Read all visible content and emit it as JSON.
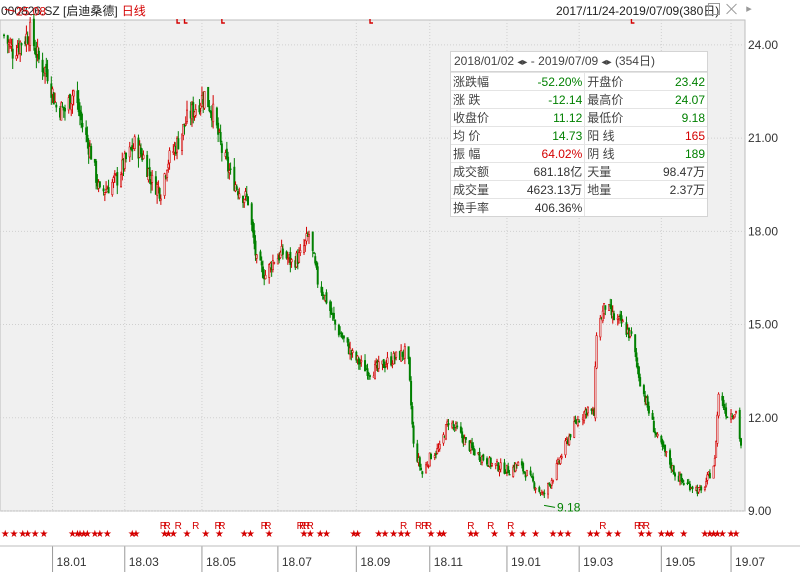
{
  "header": {
    "stock_label": "000826.SZ [启迪桑德]",
    "period": "日线",
    "date_range": "2017/11/24-2019/07/09(380日)"
  },
  "window_controls": {
    "maximize_icon": "maximize-icon",
    "close_icon": "close-icon",
    "scroll_icon": "chevron-right-icon"
  },
  "info_panel": {
    "range_start": "2018/01/02",
    "range_end": "2019/07/09",
    "range_days": "(354日)",
    "rows": [
      {
        "l1": "涨跌幅",
        "v1": "-52.20%",
        "c1": "green",
        "l2": "开盘价",
        "v2": "23.42",
        "c2": "green"
      },
      {
        "l1": "涨  跌",
        "v1": "-12.14",
        "c1": "green",
        "l2": "最高价",
        "v2": "24.07",
        "c2": "green"
      },
      {
        "l1": "收盘价",
        "v1": "11.12",
        "c1": "green",
        "l2": "最低价",
        "v2": "9.18",
        "c2": "green"
      },
      {
        "l1": "均  价",
        "v1": "14.73",
        "c1": "green",
        "l2": "阳  线",
        "v2": "165",
        "c2": "red"
      },
      {
        "l1": "振  幅",
        "v1": "64.02%",
        "c1": "red",
        "l2": "阴  线",
        "v2": "189",
        "c2": "green"
      },
      {
        "l1": "成交额",
        "v1": "681.18亿",
        "c1": "dark",
        "l2": "天量",
        "v2": "98.47万",
        "c2": "dark"
      },
      {
        "l1": "成交量",
        "v1": "4623.13万",
        "c1": "dark",
        "l2": "地量",
        "v2": "2.37万",
        "c2": "dark"
      },
      {
        "l1": "换手率",
        "v1": "406.36%",
        "c1": "dark",
        "l2": "",
        "v2": "",
        "c2": "dark"
      }
    ]
  },
  "colors": {
    "up": "#d40000",
    "down": "#008000",
    "plot_bg": "#f0f0f0",
    "grid": "#cfcfcf"
  },
  "chart_data": {
    "type": "candlestick",
    "y_ticks": [
      "24.00",
      "21.00",
      "18.00",
      "15.00",
      "12.00",
      "9.00"
    ],
    "ylim": [
      9,
      24.8
    ],
    "x_ticks": [
      {
        "label": "18.01",
        "date": "2018-01-02"
      },
      {
        "label": "18.03",
        "date": "2018-03-01"
      },
      {
        "label": "18.05",
        "date": "2018-05-02"
      },
      {
        "label": "18.07",
        "date": "2018-07-02"
      },
      {
        "label": "18.09",
        "date": "2018-09-03"
      },
      {
        "label": "18.11",
        "date": "2018-11-01"
      },
      {
        "label": "19.01",
        "date": "2019-01-02"
      },
      {
        "label": "19.03",
        "date": "2019-03-01"
      },
      {
        "label": "19.05",
        "date": "2019-05-06"
      },
      {
        "label": "19.07",
        "date": "2019-07-01"
      }
    ],
    "x_range": [
      "2017-11-24",
      "2019-07-09"
    ],
    "annotations": [
      {
        "text": "25.08",
        "date": "2017-11-24",
        "price": 25.08
      },
      {
        "text": "9.18",
        "date": "2019-01-31",
        "price": 9.18
      }
    ],
    "close_path": [
      [
        "2017-11-24",
        24.3
      ],
      [
        "2017-12-01",
        23.8
      ],
      [
        "2017-12-08",
        24.1
      ],
      [
        "2017-12-15",
        24.4
      ],
      [
        "2017-12-22",
        23.5
      ],
      [
        "2017-12-29",
        23.1
      ],
      [
        "2018-01-05",
        22.0
      ],
      [
        "2018-01-12",
        21.9
      ],
      [
        "2018-01-19",
        22.5
      ],
      [
        "2018-01-26",
        21.4
      ],
      [
        "2018-02-02",
        20.5
      ],
      [
        "2018-02-09",
        19.2
      ],
      [
        "2018-02-23",
        19.7
      ],
      [
        "2018-03-02",
        20.3
      ],
      [
        "2018-03-09",
        20.8
      ],
      [
        "2018-03-16",
        20.4
      ],
      [
        "2018-03-23",
        19.6
      ],
      [
        "2018-03-30",
        19.3
      ],
      [
        "2018-04-04",
        20.2
      ],
      [
        "2018-04-13",
        20.9
      ],
      [
        "2018-04-20",
        21.6
      ],
      [
        "2018-04-27",
        22.0
      ],
      [
        "2018-05-04",
        22.4
      ],
      [
        "2018-05-11",
        21.8
      ],
      [
        "2018-05-18",
        20.6
      ],
      [
        "2018-05-25",
        19.8
      ],
      [
        "2018-06-01",
        19.3
      ],
      [
        "2018-06-08",
        19.0
      ],
      [
        "2018-06-15",
        17.0
      ],
      [
        "2018-06-22",
        16.6
      ],
      [
        "2018-06-29",
        17.1
      ],
      [
        "2018-07-06",
        17.3
      ],
      [
        "2018-07-13",
        17.0
      ],
      [
        "2018-07-20",
        17.2
      ],
      [
        "2018-07-27",
        17.9
      ],
      [
        "2018-08-03",
        16.4
      ],
      [
        "2018-08-10",
        15.8
      ],
      [
        "2018-08-17",
        15.0
      ],
      [
        "2018-08-24",
        14.5
      ],
      [
        "2018-08-31",
        14.0
      ],
      [
        "2018-09-07",
        13.7
      ],
      [
        "2018-09-14",
        13.5
      ],
      [
        "2018-09-21",
        13.6
      ],
      [
        "2018-09-28",
        13.8
      ],
      [
        "2018-10-12",
        14.1
      ],
      [
        "2018-10-15",
        13.7
      ],
      [
        "2018-10-19",
        11.1
      ],
      [
        "2018-10-26",
        10.2
      ],
      [
        "2018-11-02",
        10.8
      ],
      [
        "2018-11-09",
        11.0
      ],
      [
        "2018-11-16",
        11.9
      ],
      [
        "2018-11-23",
        11.6
      ],
      [
        "2018-11-30",
        11.2
      ],
      [
        "2018-12-07",
        10.9
      ],
      [
        "2018-12-14",
        10.7
      ],
      [
        "2018-12-21",
        10.5
      ],
      [
        "2018-12-28",
        10.4
      ],
      [
        "2019-01-04",
        10.3
      ],
      [
        "2019-01-11",
        10.5
      ],
      [
        "2019-01-18",
        10.2
      ],
      [
        "2019-01-25",
        9.8
      ],
      [
        "2019-01-31",
        9.5
      ],
      [
        "2019-02-08",
        10.1
      ],
      [
        "2019-02-15",
        10.8
      ],
      [
        "2019-02-22",
        11.5
      ],
      [
        "2019-03-01",
        12.0
      ],
      [
        "2019-03-08",
        12.3
      ],
      [
        "2019-03-13",
        12.1
      ],
      [
        "2019-03-15",
        14.8
      ],
      [
        "2019-03-22",
        15.6
      ],
      [
        "2019-03-29",
        15.2
      ],
      [
        "2019-04-05",
        15.0
      ],
      [
        "2019-04-12",
        14.6
      ],
      [
        "2019-04-19",
        13.2
      ],
      [
        "2019-04-26",
        12.2
      ],
      [
        "2019-05-03",
        11.3
      ],
      [
        "2019-05-10",
        10.8
      ],
      [
        "2019-05-17",
        10.2
      ],
      [
        "2019-05-24",
        9.9
      ],
      [
        "2019-05-31",
        9.8
      ],
      [
        "2019-06-07",
        9.6
      ],
      [
        "2019-06-14",
        10.2
      ],
      [
        "2019-06-18",
        10.6
      ],
      [
        "2019-06-21",
        12.8
      ],
      [
        "2019-06-28",
        12.1
      ],
      [
        "2019-07-05",
        12.2
      ],
      [
        "2019-07-09",
        11.12
      ]
    ],
    "bottom_markers": {
      "star_dates": [
        "2017-11-25",
        "2017-12-02",
        "2017-12-09",
        "2017-12-13",
        "2017-12-19",
        "2017-12-26",
        "2018-01-18",
        "2018-01-22",
        "2018-01-24",
        "2018-01-27",
        "2018-01-30",
        "2018-02-05",
        "2018-02-09",
        "2018-02-15",
        "2018-03-07",
        "2018-03-10",
        "2018-04-02",
        "2018-04-05",
        "2018-04-09",
        "2018-04-20",
        "2018-05-05",
        "2018-05-16",
        "2018-06-05",
        "2018-06-10",
        "2018-06-25",
        "2018-07-23",
        "2018-07-28",
        "2018-08-05",
        "2018-08-10",
        "2018-09-01",
        "2018-09-04",
        "2018-09-21",
        "2018-09-26",
        "2018-10-03",
        "2018-10-09",
        "2018-10-14",
        "2018-11-02",
        "2018-11-09",
        "2018-11-12",
        "2018-12-04",
        "2018-12-08",
        "2018-12-23",
        "2019-01-06",
        "2019-01-15",
        "2019-01-25",
        "2019-02-08",
        "2019-02-14",
        "2019-02-20",
        "2019-03-10",
        "2019-03-15",
        "2019-03-25",
        "2019-04-01",
        "2019-04-20",
        "2019-04-26",
        "2019-05-06",
        "2019-05-11",
        "2019-05-14",
        "2019-05-24",
        "2019-06-10",
        "2019-06-14",
        "2019-06-17",
        "2019-06-20",
        "2019-06-24",
        "2019-07-01",
        "2019-07-05"
      ],
      "r_dates": [
        "2018-04-01",
        "2018-04-04",
        "2018-04-13",
        "2018-04-27",
        "2018-05-15",
        "2018-05-18",
        "2018-06-21",
        "2018-06-24",
        "2018-07-20",
        "2018-07-22",
        "2018-07-25",
        "2018-07-28",
        "2018-10-11",
        "2018-10-23",
        "2018-10-28",
        "2018-10-31",
        "2018-12-04",
        "2018-12-20",
        "2019-01-05",
        "2019-03-20",
        "2019-04-17",
        "2019-04-20",
        "2019-04-24"
      ]
    }
  }
}
